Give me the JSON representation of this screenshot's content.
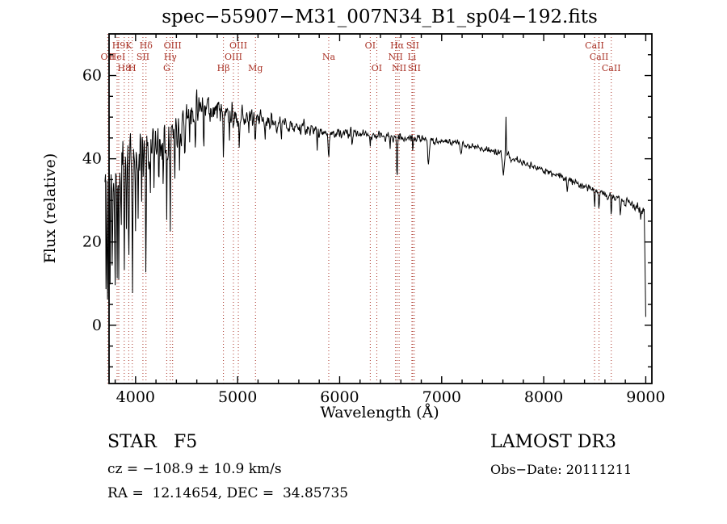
{
  "chart_data": {
    "type": "line",
    "title": "spec−55907−M31_007N34_B1_sp04−192.fits",
    "xlabel": "Wavelength (Å)",
    "ylabel": "Flux (relative)",
    "xlim": [
      3740,
      9060
    ],
    "ylim": [
      -14,
      70
    ],
    "xticks": [
      4000,
      5000,
      6000,
      7000,
      8000,
      9000
    ],
    "yticks": [
      0,
      20,
      40,
      60
    ],
    "x_minor_step": 200,
    "y_minor_step": 5,
    "line_color": "#000000",
    "marker_color": "#a93226",
    "axis_color": "#000000",
    "background": "#ffffff",
    "legend": "none",
    "grid": false,
    "line_markers": [
      {
        "label": "OII",
        "wavelength": 3727,
        "row": 2
      },
      {
        "label": "HeI",
        "wavelength": 3819,
        "row": 2
      },
      {
        "label": "H9",
        "wavelength": 3835,
        "row": 1
      },
      {
        "label": "H8",
        "wavelength": 3889,
        "row": 3
      },
      {
        "label": "K",
        "wavelength": 3933,
        "row": 1
      },
      {
        "label": "H",
        "wavelength": 3968,
        "row": 3
      },
      {
        "label": "SII",
        "wavelength": 4072,
        "row": 2
      },
      {
        "label": "Hδ",
        "wavelength": 4102,
        "row": 1
      },
      {
        "label": "G",
        "wavelength": 4305,
        "row": 3
      },
      {
        "label": "Hγ",
        "wavelength": 4340,
        "row": 2
      },
      {
        "label": "OIII",
        "wavelength": 4363,
        "row": 1
      },
      {
        "label": "Hβ",
        "wavelength": 4861,
        "row": 3
      },
      {
        "label": "OIII",
        "wavelength": 4959,
        "row": 2
      },
      {
        "label": "OIII",
        "wavelength": 5007,
        "row": 1
      },
      {
        "label": "Mg",
        "wavelength": 5175,
        "row": 3
      },
      {
        "label": "Na",
        "wavelength": 5893,
        "row": 2
      },
      {
        "label": "OI",
        "wavelength": 6300,
        "row": 1
      },
      {
        "label": "OI",
        "wavelength": 6364,
        "row": 3
      },
      {
        "label": "NII",
        "wavelength": 6548,
        "row": 2
      },
      {
        "label": "Hα",
        "wavelength": 6563,
        "row": 1
      },
      {
        "label": "NII",
        "wavelength": 6583,
        "row": 3
      },
      {
        "label": "Li",
        "wavelength": 6708,
        "row": 2
      },
      {
        "label": "SII",
        "wavelength": 6716,
        "row": 1
      },
      {
        "label": "SII",
        "wavelength": 6731,
        "row": 3
      },
      {
        "label": "CaII",
        "wavelength": 8498,
        "row": 1
      },
      {
        "label": "CaII",
        "wavelength": 8542,
        "row": 2
      },
      {
        "label": "CaII",
        "wavelength": 8662,
        "row": 3
      }
    ],
    "spectrum": {
      "x_start": 3700,
      "x_end": 9000,
      "step": 5,
      "seed": 11,
      "continuum": [
        [
          3700,
          33
        ],
        [
          3800,
          37
        ],
        [
          3900,
          40
        ],
        [
          4000,
          42
        ],
        [
          4100,
          43
        ],
        [
          4200,
          44
        ],
        [
          4300,
          46
        ],
        [
          4400,
          48
        ],
        [
          4500,
          50
        ],
        [
          4600,
          53
        ],
        [
          4700,
          53
        ],
        [
          4800,
          52
        ],
        [
          4900,
          51
        ],
        [
          5000,
          50
        ],
        [
          5100,
          50
        ],
        [
          5200,
          49.5
        ],
        [
          5300,
          49
        ],
        [
          5400,
          48.5
        ],
        [
          5500,
          48
        ],
        [
          5600,
          47.5
        ],
        [
          5700,
          47
        ],
        [
          5800,
          46.5
        ],
        [
          5900,
          46
        ],
        [
          6000,
          46
        ],
        [
          6100,
          46
        ],
        [
          6200,
          46
        ],
        [
          6300,
          45.8
        ],
        [
          6400,
          45.5
        ],
        [
          6500,
          45.2
        ],
        [
          6600,
          45
        ],
        [
          6700,
          45
        ],
        [
          6800,
          44.8
        ],
        [
          6900,
          44.5
        ],
        [
          7000,
          44.2
        ],
        [
          7100,
          44
        ],
        [
          7200,
          43.5
        ],
        [
          7300,
          43
        ],
        [
          7400,
          42.5
        ],
        [
          7500,
          42
        ],
        [
          7600,
          41
        ],
        [
          7700,
          40
        ],
        [
          7800,
          39
        ],
        [
          7900,
          38
        ],
        [
          8000,
          37.2
        ],
        [
          8100,
          36.3
        ],
        [
          8200,
          35.5
        ],
        [
          8300,
          34.5
        ],
        [
          8400,
          33.5
        ],
        [
          8500,
          32.5
        ],
        [
          8600,
          31.5
        ],
        [
          8700,
          30.5
        ],
        [
          8800,
          29.5
        ],
        [
          8900,
          28.5
        ],
        [
          9000,
          27.5
        ]
      ],
      "noise": [
        [
          3700,
          20
        ],
        [
          3800,
          18
        ],
        [
          3900,
          16
        ],
        [
          4000,
          14
        ],
        [
          4100,
          12
        ],
        [
          4200,
          11
        ],
        [
          4300,
          10
        ],
        [
          4400,
          9
        ],
        [
          4500,
          8.5
        ],
        [
          4600,
          8
        ],
        [
          4700,
          7.5
        ],
        [
          4800,
          7
        ],
        [
          4900,
          6
        ],
        [
          5000,
          5
        ],
        [
          5100,
          4.5
        ],
        [
          5200,
          4.2
        ],
        [
          5400,
          3.6
        ],
        [
          5600,
          3.2
        ],
        [
          5800,
          2.8
        ],
        [
          6000,
          2.4
        ],
        [
          6200,
          2.2
        ],
        [
          6400,
          2.0
        ],
        [
          6600,
          1.9
        ],
        [
          6800,
          1.8
        ],
        [
          7000,
          1.6
        ],
        [
          7200,
          1.5
        ],
        [
          7400,
          1.5
        ],
        [
          7600,
          1.6
        ],
        [
          7800,
          1.6
        ],
        [
          8000,
          1.7
        ],
        [
          8200,
          1.8
        ],
        [
          8400,
          1.9
        ],
        [
          8600,
          2.0
        ],
        [
          8800,
          2.1
        ],
        [
          9000,
          2.2
        ]
      ],
      "features_w_depth_sigma": [
        [
          3712,
          30,
          3
        ],
        [
          3727,
          26,
          3
        ],
        [
          3750,
          22,
          3
        ],
        [
          3771,
          28,
          3
        ],
        [
          3798,
          30,
          3
        ],
        [
          3820,
          24,
          3
        ],
        [
          3835,
          32,
          3
        ],
        [
          3860,
          18,
          3
        ],
        [
          3889,
          34,
          3
        ],
        [
          3912,
          16,
          3
        ],
        [
          3933,
          28,
          3
        ],
        [
          3970,
          32,
          3
        ],
        [
          4000,
          16,
          3
        ],
        [
          4026,
          20,
          3
        ],
        [
          4060,
          16,
          3
        ],
        [
          4102,
          30,
          3
        ],
        [
          4144,
          14,
          3
        ],
        [
          4180,
          10,
          3
        ],
        [
          4227,
          14,
          3
        ],
        [
          4270,
          12,
          3
        ],
        [
          4305,
          16,
          3
        ],
        [
          4340,
          26,
          3
        ],
        [
          4383,
          14,
          3
        ],
        [
          4430,
          10,
          3
        ],
        [
          4481,
          10,
          3
        ],
        [
          4530,
          8,
          3
        ],
        [
          4584,
          8,
          3
        ],
        [
          4668,
          8,
          3
        ],
        [
          4730,
          6,
          3
        ],
        [
          4861,
          14,
          4
        ],
        [
          4920,
          6,
          3
        ],
        [
          4958,
          5,
          3
        ],
        [
          5015,
          5,
          3
        ],
        [
          5110,
          4,
          3
        ],
        [
          5175,
          7,
          5
        ],
        [
          5270,
          5,
          4
        ],
        [
          5430,
          4,
          3
        ],
        [
          5780,
          4,
          3
        ],
        [
          5893,
          7,
          4
        ],
        [
          6122,
          3,
          3
        ],
        [
          6300,
          3,
          3
        ],
        [
          6494,
          3,
          3
        ],
        [
          6563,
          10,
          4
        ],
        [
          6717,
          3,
          3
        ],
        [
          6870,
          6,
          8
        ],
        [
          7190,
          3,
          6
        ],
        [
          7605,
          5,
          8
        ],
        [
          7630,
          -9,
          3
        ],
        [
          8230,
          3,
          4
        ],
        [
          8498,
          4,
          3
        ],
        [
          8542,
          5,
          3
        ],
        [
          8662,
          5,
          3
        ],
        [
          8750,
          3,
          4
        ],
        [
          8950,
          3,
          4
        ]
      ],
      "end_drop": {
        "start": 8985,
        "min_flux": 2
      }
    }
  },
  "footer": {
    "class_label": "STAR   F5",
    "survey": "LAMOST DR3",
    "cz": "cz = −108.9 ± 10.9 km/s",
    "obs_date": "Obs−Date: 20111211",
    "radec": "RA =  12.14654, DEC =  34.85735"
  }
}
